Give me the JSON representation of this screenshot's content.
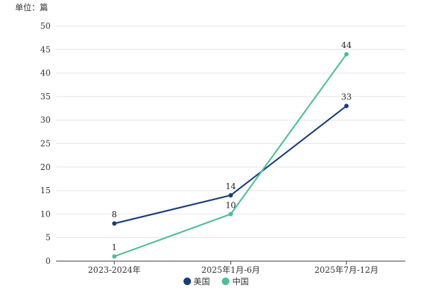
{
  "chart_data": {
    "type": "line",
    "unit_label": "单位：篇",
    "categories": [
      "2023-2024年",
      "2025年1月-6月",
      "2025年7月-12月"
    ],
    "ylim": [
      0,
      50
    ],
    "yticks": [
      0,
      5,
      10,
      15,
      20,
      25,
      30,
      35,
      40,
      45,
      50
    ],
    "grid": true,
    "legend_position": "bottom",
    "series": [
      {
        "name": "美国",
        "color": "#1a3d7c",
        "values": [
          8,
          14,
          33
        ]
      },
      {
        "name": "中国",
        "color": "#4dbf96",
        "values": [
          1,
          10,
          44
        ]
      }
    ]
  }
}
